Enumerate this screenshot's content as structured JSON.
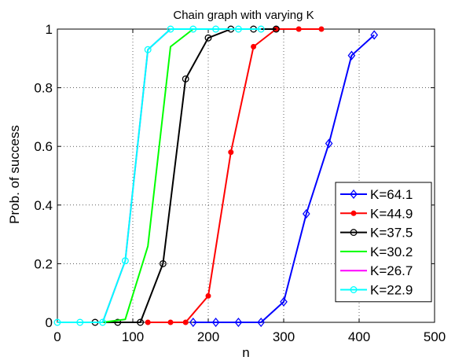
{
  "chart_data": {
    "type": "line",
    "title": "Chain graph with varying K",
    "xlabel": "n",
    "ylabel": "Prob. of success",
    "xlim": [
      0,
      500
    ],
    "ylim": [
      0,
      1
    ],
    "xticks": [
      "0",
      "100",
      "200",
      "300",
      "400",
      "500"
    ],
    "yticks": [
      "0",
      "0.2",
      "0.4",
      "0.6",
      "0.8",
      "1"
    ],
    "grid": "dotted",
    "legend_position": "bottom-right",
    "series": [
      {
        "name": "K=64.1",
        "color": "#0000ff",
        "marker": "diamond",
        "x": [
          180,
          210,
          240,
          270,
          300,
          330,
          360,
          390,
          420
        ],
        "y": [
          0,
          0,
          0,
          0,
          0.07,
          0.37,
          0.61,
          0.91,
          0.98
        ]
      },
      {
        "name": "K=44.9",
        "color": "#ff0000",
        "marker": "dot",
        "x": [
          120,
          150,
          170,
          200,
          230,
          260,
          290,
          320,
          350
        ],
        "y": [
          0,
          0,
          0,
          0.09,
          0.58,
          0.94,
          1,
          1,
          1
        ]
      },
      {
        "name": "K=37.5",
        "color": "#000000",
        "marker": "circle",
        "x": [
          50,
          80,
          110,
          140,
          170,
          200,
          230,
          260,
          290
        ],
        "y": [
          0,
          0,
          0,
          0.2,
          0.83,
          0.97,
          1,
          1,
          1
        ]
      },
      {
        "name": "K=30.2",
        "color": "#00ff00",
        "marker": "none",
        "x": [
          60,
          90,
          120,
          150,
          180,
          210,
          240
        ],
        "y": [
          0,
          0.01,
          0.26,
          0.94,
          1,
          1,
          1
        ]
      },
      {
        "name": "K=26.7",
        "color": "#ff00ff",
        "marker": "none",
        "x": [
          0,
          30,
          60,
          90,
          120,
          150,
          180,
          210,
          240,
          270
        ],
        "y": [
          0,
          0,
          0,
          0.21,
          0.93,
          1,
          1,
          1,
          1,
          1
        ]
      },
      {
        "name": "K=22.9",
        "color": "#00ffff",
        "marker": "circle",
        "x": [
          0,
          30,
          60,
          90,
          120,
          150,
          180,
          210,
          240,
          270
        ],
        "y": [
          0,
          0,
          0,
          0.21,
          0.93,
          1,
          1,
          1,
          1,
          1
        ]
      }
    ]
  }
}
